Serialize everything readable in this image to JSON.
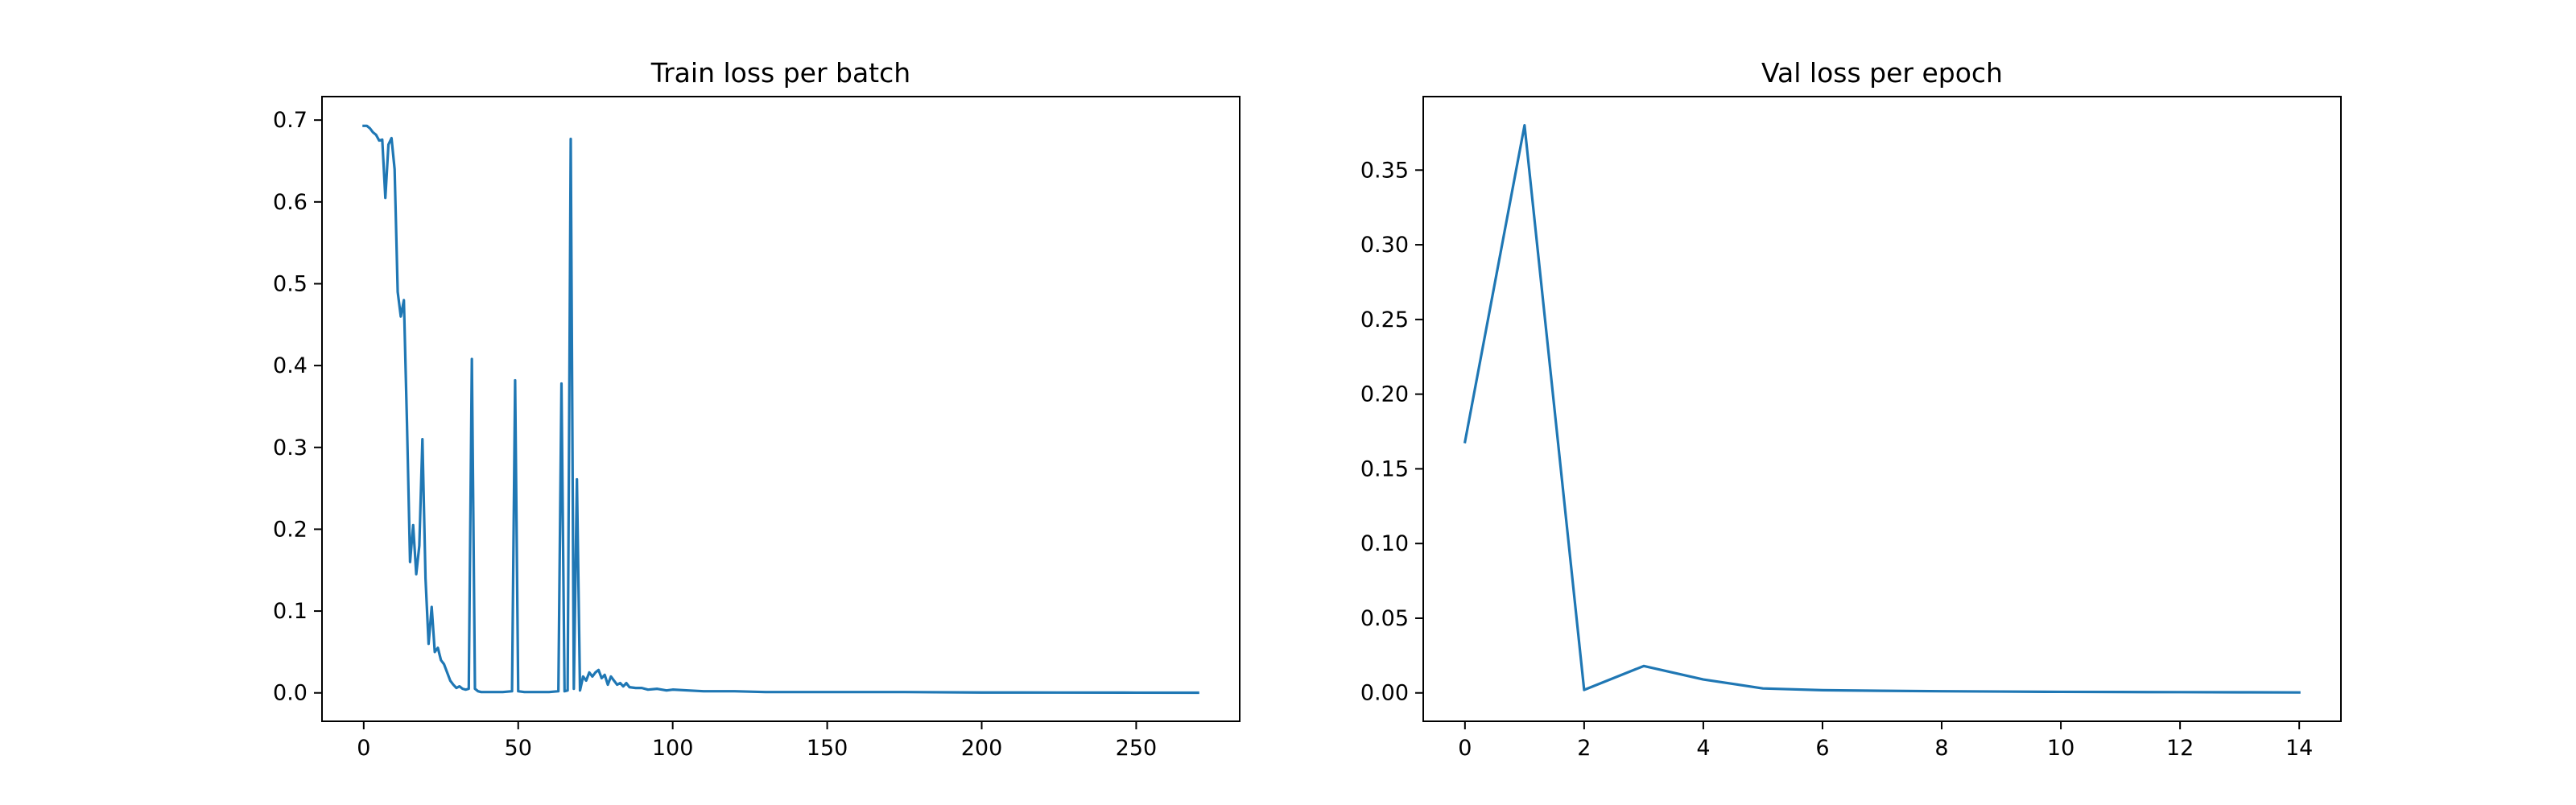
{
  "chart_data": [
    {
      "type": "line",
      "title": "Train loss per batch",
      "xlabel": "",
      "ylabel": "",
      "xlim": [
        -13.5,
        283.5
      ],
      "ylim": [
        -0.0347,
        0.7287
      ],
      "xticks": [
        0,
        50,
        100,
        150,
        200,
        250
      ],
      "yticks": [
        0.0,
        0.1,
        0.2,
        0.3,
        0.4,
        0.5,
        0.6,
        0.7
      ],
      "xtick_labels": [
        "0",
        "50",
        "100",
        "150",
        "200",
        "250"
      ],
      "ytick_labels": [
        "0.0",
        "0.1",
        "0.2",
        "0.3",
        "0.4",
        "0.5",
        "0.6",
        "0.7"
      ],
      "grid": false,
      "legend": "none",
      "color": "#1f77b4",
      "series": [
        {
          "x": [
            0,
            1,
            2,
            3,
            4,
            5,
            6,
            7,
            8,
            9,
            10,
            11,
            12,
            13,
            14,
            15,
            16,
            17,
            18,
            19,
            20,
            21,
            22,
            23,
            24,
            25,
            26,
            27,
            28,
            29,
            30,
            31,
            32,
            33,
            34,
            35,
            36,
            37,
            38,
            40,
            45,
            48,
            49,
            50,
            52,
            55,
            60,
            63,
            64,
            65,
            66,
            67,
            68,
            69,
            70,
            71,
            72,
            73,
            74,
            75,
            76,
            77,
            78,
            79,
            80,
            81,
            82,
            83,
            84,
            85,
            86,
            88,
            90,
            92,
            95,
            98,
            100,
            105,
            110,
            120,
            130,
            150,
            175,
            200,
            225,
            250,
            270
          ],
          "values": [
            0.693,
            0.693,
            0.69,
            0.685,
            0.682,
            0.675,
            0.676,
            0.605,
            0.67,
            0.678,
            0.64,
            0.49,
            0.46,
            0.48,
            0.33,
            0.16,
            0.205,
            0.145,
            0.18,
            0.31,
            0.14,
            0.06,
            0.105,
            0.05,
            0.055,
            0.04,
            0.035,
            0.025,
            0.015,
            0.01,
            0.006,
            0.008,
            0.005,
            0.004,
            0.005,
            0.408,
            0.005,
            0.002,
            0.001,
            0.001,
            0.001,
            0.002,
            0.382,
            0.002,
            0.001,
            0.001,
            0.001,
            0.002,
            0.378,
            0.002,
            0.003,
            0.677,
            0.005,
            0.261,
            0.003,
            0.02,
            0.015,
            0.025,
            0.02,
            0.025,
            0.028,
            0.018,
            0.022,
            0.01,
            0.02,
            0.015,
            0.01,
            0.012,
            0.008,
            0.012,
            0.007,
            0.006,
            0.006,
            0.004,
            0.005,
            0.003,
            0.004,
            0.003,
            0.002,
            0.002,
            0.001,
            0.001,
            0.001,
            0.0005,
            0.0004,
            0.0003,
            0.0002
          ]
        }
      ]
    },
    {
      "type": "line",
      "title": "Val loss per epoch",
      "xlabel": "",
      "ylabel": "",
      "xlim": [
        -0.7,
        14.7
      ],
      "ylim": [
        -0.019,
        0.3992
      ],
      "xticks": [
        0,
        2,
        4,
        6,
        8,
        10,
        12,
        14
      ],
      "yticks": [
        0.0,
        0.05,
        0.1,
        0.15,
        0.2,
        0.25,
        0.3,
        0.35
      ],
      "xtick_labels": [
        "0",
        "2",
        "4",
        "6",
        "8",
        "10",
        "12",
        "14"
      ],
      "ytick_labels": [
        "0.00",
        "0.05",
        "0.10",
        "0.15",
        "0.20",
        "0.25",
        "0.30",
        "0.35"
      ],
      "grid": false,
      "legend": "none",
      "color": "#1f77b4",
      "series": [
        {
          "x": [
            0,
            1,
            2,
            3,
            4,
            5,
            6,
            7,
            8,
            9,
            10,
            11,
            12,
            13,
            14
          ],
          "values": [
            0.168,
            0.38,
            0.002,
            0.018,
            0.009,
            0.003,
            0.0018,
            0.0014,
            0.0011,
            0.0009,
            0.0007,
            0.0006,
            0.0005,
            0.0004,
            0.0003
          ]
        }
      ]
    }
  ]
}
